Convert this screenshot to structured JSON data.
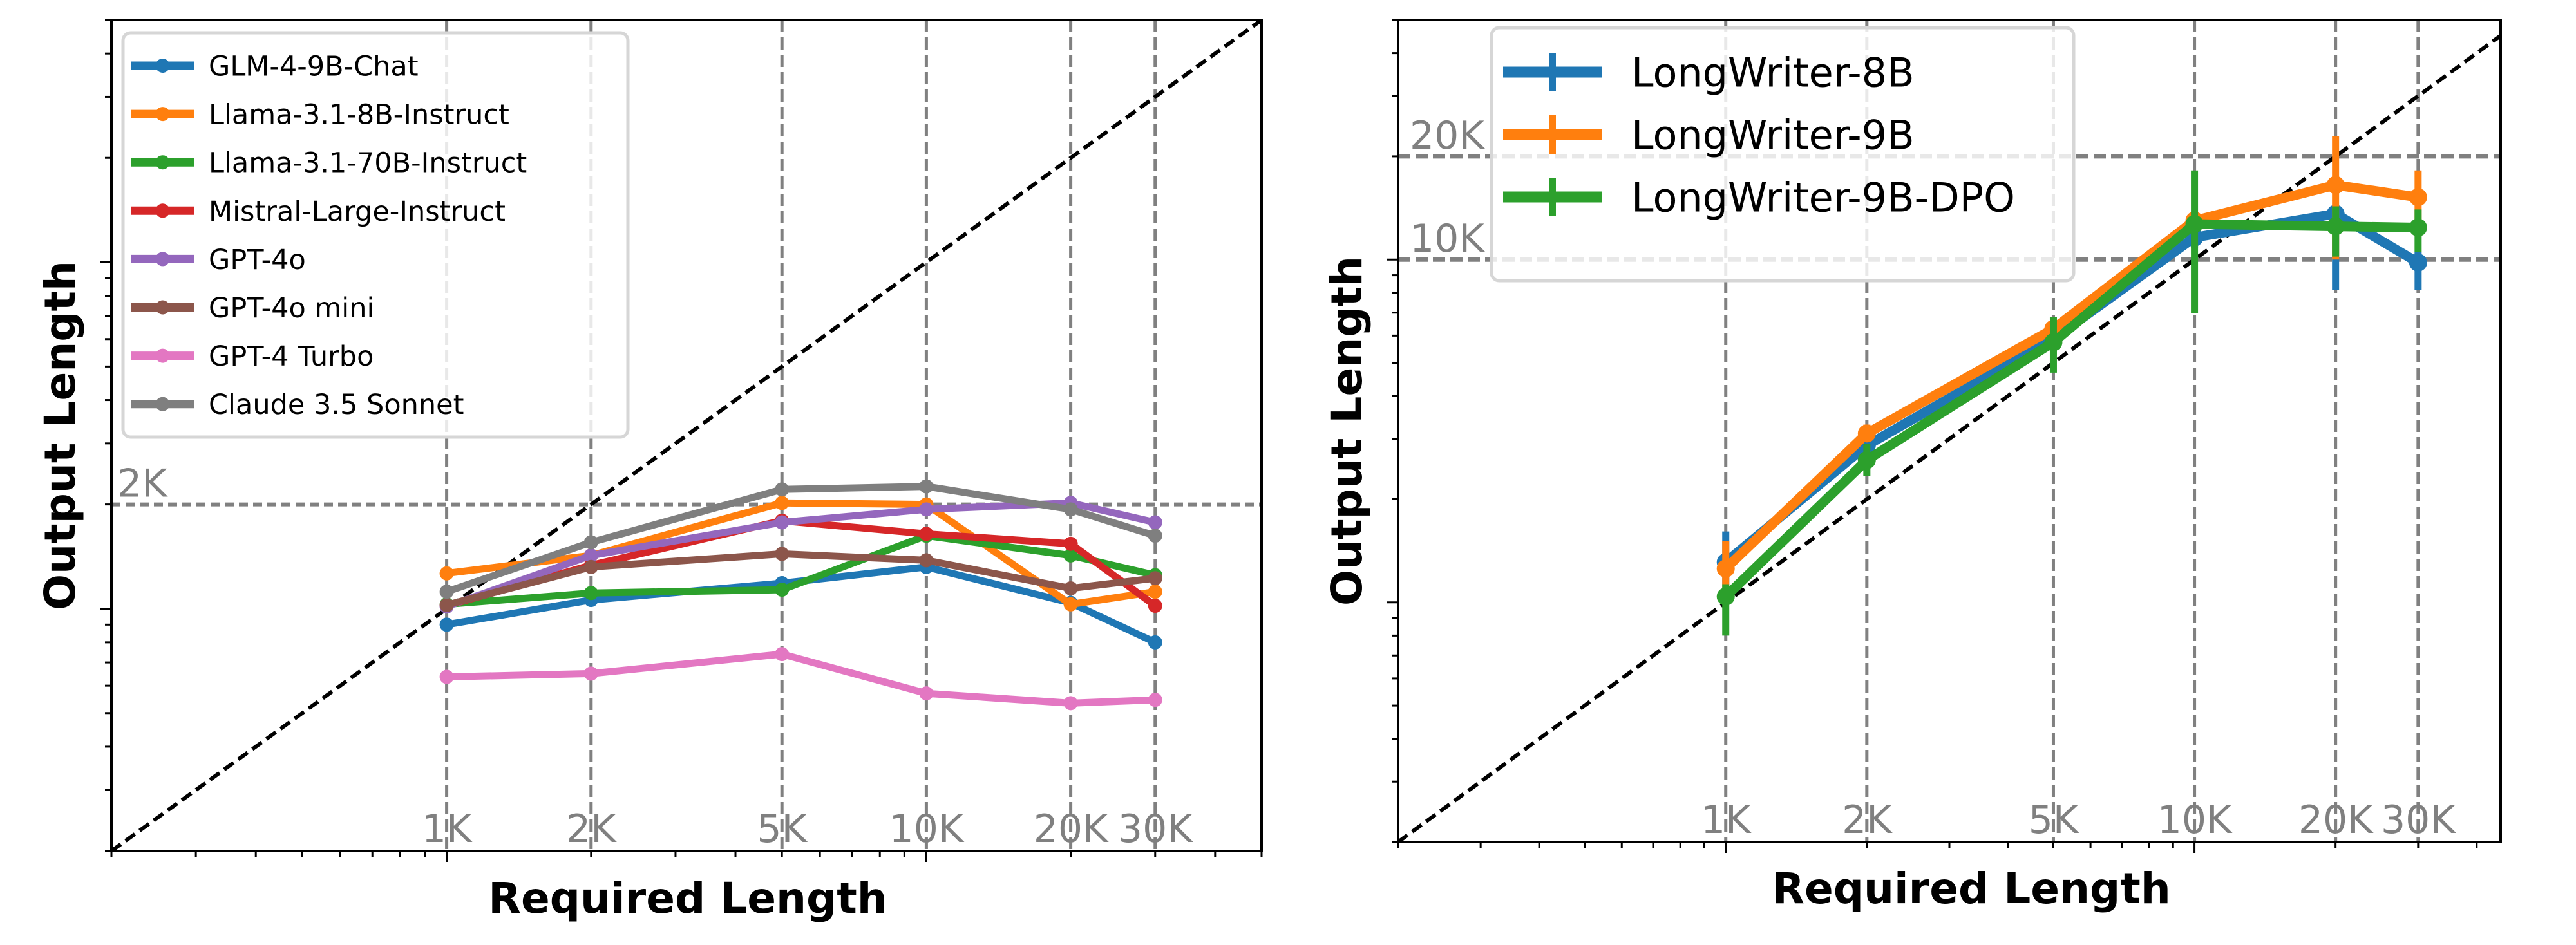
{
  "chart_data": [
    {
      "type": "line",
      "xscale": "log",
      "yscale": "log",
      "xlim": [
        200,
        50000
      ],
      "ylim": [
        200,
        50000
      ],
      "xlabel": "Required Length",
      "ylabel": "Output Length",
      "x_ticks": [
        1000,
        2000,
        5000,
        10000,
        20000,
        30000
      ],
      "x_tick_labels": [
        "1K",
        "2K",
        "5K",
        "10K",
        "20K",
        "30K"
      ],
      "y_ticks": [
        2000
      ],
      "y_tick_labels": [
        "2K"
      ],
      "grid": "dashed gray at labeled ticks",
      "reference_line": "y = x (black dashed)",
      "legend": "top-left",
      "x": [
        1000,
        2000,
        5000,
        10000,
        20000,
        30000
      ],
      "series": [
        {
          "name": "GLM-4-9B-Chat",
          "color": "#1f77b4",
          "y": [
            900,
            1060,
            1185,
            1320,
            1040,
            800
          ]
        },
        {
          "name": "Llama-3.1-8B-Instruct",
          "color": "#ff7f0e",
          "y": [
            1265,
            1425,
            2020,
            2000,
            1030,
            1120
          ]
        },
        {
          "name": "Llama-3.1-70B-Instruct",
          "color": "#2ca02c",
          "y": [
            1030,
            1110,
            1135,
            1625,
            1425,
            1250
          ]
        },
        {
          "name": "Mistral-Large-Instruct",
          "color": "#d62728",
          "y": [
            1020,
            1335,
            1795,
            1645,
            1540,
            1020
          ]
        },
        {
          "name": "GPT-4o",
          "color": "#9467bd",
          "y": [
            1015,
            1425,
            1775,
            1935,
            2020,
            1775
          ]
        },
        {
          "name": "GPT-4o mini",
          "color": "#8c564b",
          "y": [
            1025,
            1320,
            1440,
            1380,
            1145,
            1225
          ]
        },
        {
          "name": "GPT-4 Turbo",
          "color": "#e377c2",
          "y": [
            636,
            650,
            740,
            570,
            534,
            546
          ]
        },
        {
          "name": "Claude 3.5 Sonnet",
          "color": "#7f7f7f",
          "y": [
            1120,
            1555,
            2210,
            2255,
            1935,
            1625
          ]
        }
      ]
    },
    {
      "type": "line",
      "xscale": "log",
      "yscale": "log",
      "xlim": [
        200,
        45000
      ],
      "ylim": [
        200,
        50000
      ],
      "xlabel": "Required Length",
      "ylabel": "Output Length",
      "x_ticks": [
        1000,
        2000,
        5000,
        10000,
        20000,
        30000
      ],
      "x_tick_labels": [
        "1K",
        "2K",
        "5K",
        "10K",
        "20K",
        "30K"
      ],
      "y_ticks": [
        20000,
        10000
      ],
      "y_tick_labels": [
        "20K",
        "10K"
      ],
      "grid": "dashed gray at labeled ticks",
      "reference_line": "y = x (black dashed)",
      "legend": "top-left",
      "x": [
        1000,
        2000,
        5000,
        10000,
        20000,
        30000
      ],
      "series": [
        {
          "name": "LongWriter-8B",
          "color": "#1f77b4",
          "y": [
            1310,
            2870,
            5870,
            11600,
            13600,
            9800
          ],
          "yerr": [
            [
              1130,
              1610
            ],
            [
              2700,
              3050
            ],
            [
              5600,
              6200
            ],
            [
              10800,
              12500
            ],
            [
              8150,
              14200
            ],
            [
              8150,
              10500
            ]
          ]
        },
        {
          "name": "LongWriter-9B",
          "color": "#ff7f0e",
          "y": [
            1255,
            3110,
            6280,
            13000,
            16500,
            15200
          ],
          "yerr": [
            [
              1100,
              1510
            ],
            [
              2950,
              3300
            ],
            [
              6000,
              6600
            ],
            [
              12200,
              13800
            ],
            [
              10000,
              22900
            ],
            [
              12800,
              18200
            ]
          ]
        },
        {
          "name": "LongWriter-9B-DPO",
          "color": "#2ca02c",
          "y": [
            1040,
            2600,
            5740,
            12700,
            12500,
            12400
          ],
          "yerr": [
            [
              800,
              1130
            ],
            [
              2340,
              2900
            ],
            [
              4680,
              6800
            ],
            [
              6960,
              18200
            ],
            [
              10200,
              14300
            ],
            [
              10500,
              14000
            ]
          ]
        }
      ]
    }
  ]
}
